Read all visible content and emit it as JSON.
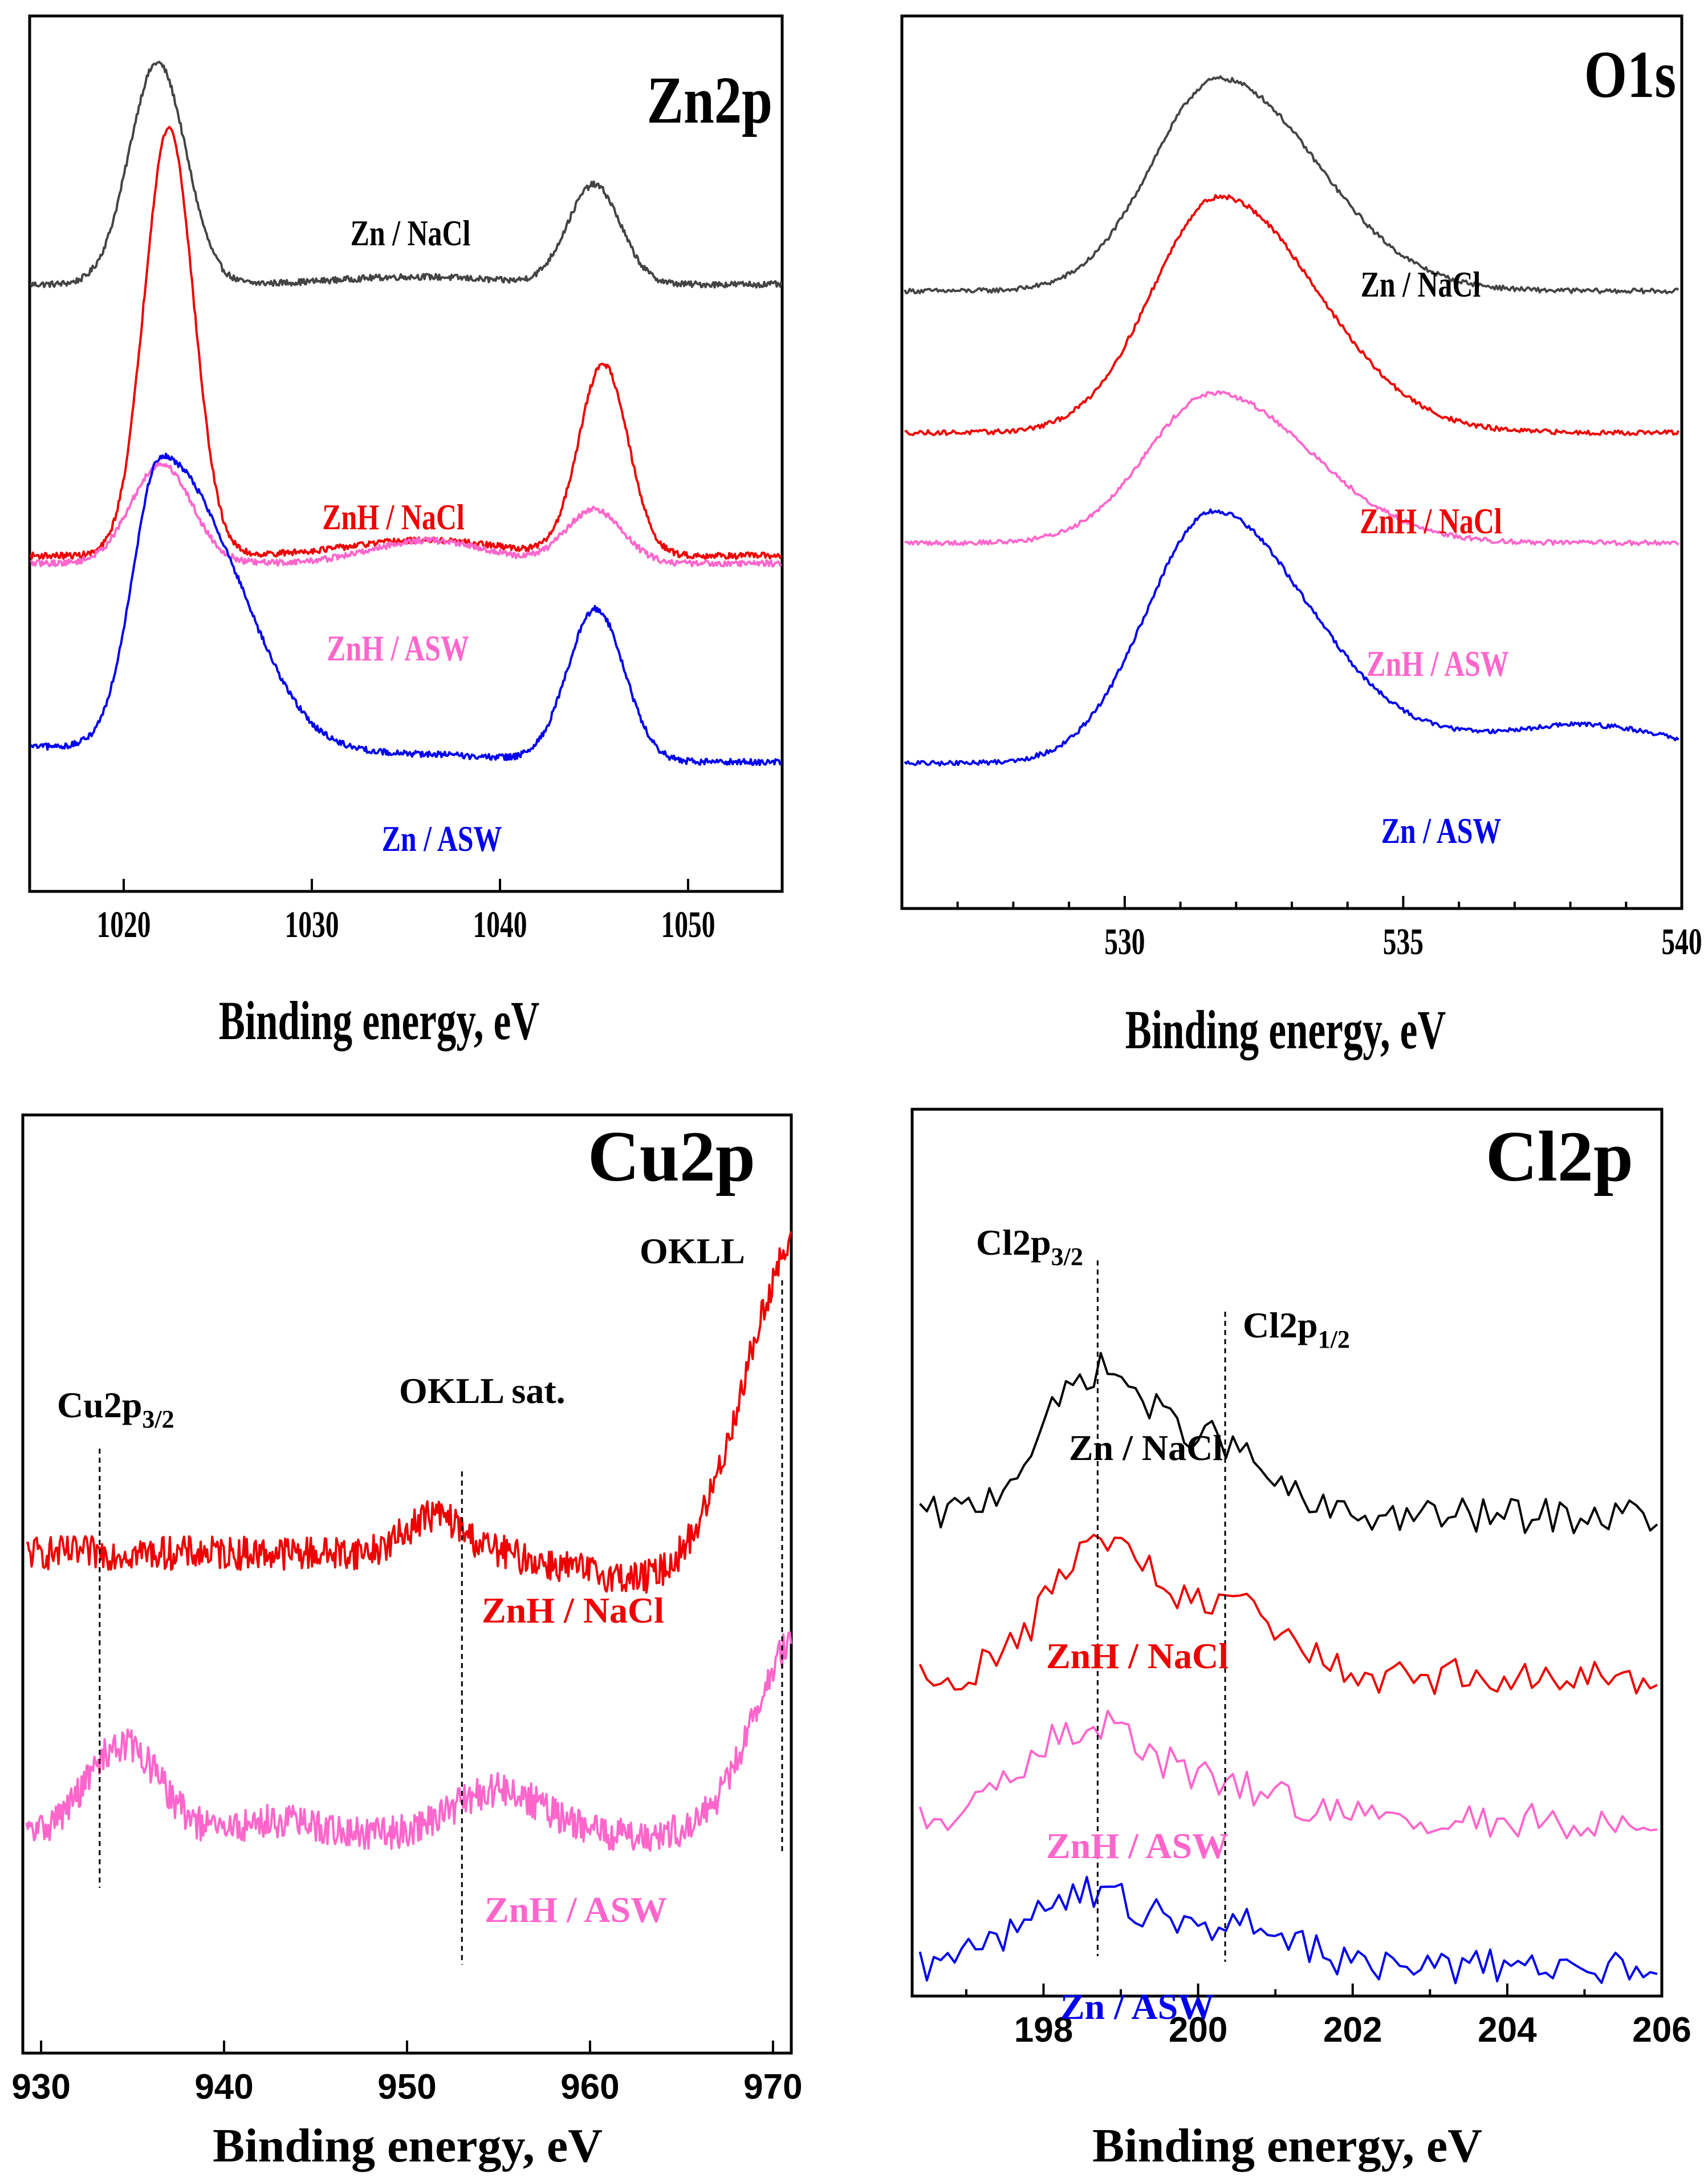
{
  "chart_data": [
    {
      "type": "line",
      "title": "Zn2p",
      "xlabel": "Binding energy, eV",
      "ylabel": "",
      "xlim": [
        1015,
        1055
      ],
      "xticks": [
        1020,
        1030,
        1040,
        1050
      ],
      "xtick_labels": [
        "1020",
        "1030",
        "1040",
        "1050"
      ],
      "y_units": "arbitrary (offset, relative intensity)",
      "series": [
        {
          "name": "Zn / NaCl",
          "color": "#444444",
          "baseline": 0.71,
          "peaks": [
            {
              "x": 1021.8,
              "height": 0.29,
              "width": 1.5
            },
            {
              "x": 1045.0,
              "height": 0.13,
              "width": 1.4
            },
            {
              "x": 1035.5,
              "height": 0.01,
              "width": 4
            }
          ]
        },
        {
          "name": "ZnH / NaCl",
          "color": "#ee0000",
          "baseline": 0.355,
          "peaks": [
            {
              "x": 1022.4,
              "height": 0.56,
              "width": 1.3
            },
            {
              "x": 1045.5,
              "height": 0.25,
              "width": 1.3
            },
            {
              "x": 1036.0,
              "height": 0.02,
              "width": 4
            }
          ]
        },
        {
          "name": "ZnH / ASW",
          "color": "#ff66cc",
          "baseline": 0.345,
          "peaks": [
            {
              "x": 1022.0,
              "height": 0.13,
              "width": 1.6
            },
            {
              "x": 1045.0,
              "height": 0.07,
              "width": 1.5
            },
            {
              "x": 1036.2,
              "height": 0.03,
              "width": 3
            }
          ]
        },
        {
          "name": "Zn / ASW",
          "color": "#0000ee",
          "baseline": 0.105,
          "peaks": [
            {
              "x": 1022.0,
              "height": 0.38,
              "width": 1.5
            },
            {
              "x": 1045.1,
              "height": 0.2,
              "width": 1.5
            },
            {
              "x": 1035.5,
              "height": 0.01,
              "width": 4
            }
          ]
        }
      ]
    },
    {
      "type": "line",
      "title": "O1s",
      "xlabel": "Binding energy, eV",
      "ylabel": "",
      "xlim": [
        526,
        540
      ],
      "xticks": [
        530,
        535,
        540
      ],
      "xtick_labels": [
        "530",
        "535",
        "540"
      ],
      "y_units": "arbitrary (offset, relative intensity)",
      "series": [
        {
          "name": "Zn / NaCl",
          "color": "#444444",
          "baseline": 0.71,
          "peaks": [
            {
              "x": 531.7,
              "height": 0.27,
              "width": 1.2
            }
          ]
        },
        {
          "name": "ZnH / NaCl",
          "color": "#ee0000",
          "baseline": 0.53,
          "peaks": [
            {
              "x": 531.7,
              "height": 0.3,
              "width": 1.2
            }
          ]
        },
        {
          "name": "ZnH / ASW",
          "color": "#ff66cc",
          "baseline": 0.39,
          "peaks": [
            {
              "x": 531.6,
              "height": 0.19,
              "width": 1.2
            }
          ]
        },
        {
          "name": "Zn / ASW",
          "color": "#0000ee",
          "baseline": 0.11,
          "peaks": [
            {
              "x": 531.6,
              "height": 0.32,
              "width": 1.2
            }
          ]
        }
      ]
    },
    {
      "type": "line",
      "title": "Cu2p",
      "xlabel": "Binding energy, eV",
      "ylabel": "",
      "xlim": [
        929,
        971
      ],
      "xticks": [
        930,
        940,
        950,
        960,
        970
      ],
      "xtick_labels": [
        "930",
        "940",
        "950",
        "960",
        "970"
      ],
      "y_units": "arbitrary (offset, relative intensity)",
      "annotations": [
        {
          "text": "Cu2p",
          "sub": "3/2",
          "x": 933.2
        },
        {
          "text": "OKLL sat.",
          "sub": "",
          "x": 953.0
        },
        {
          "text": "OKLL",
          "sub": "",
          "x": 970.5
        }
      ],
      "series": [
        {
          "name": "ZnH / NaCl",
          "color": "#ee0000",
          "baseline": 0.55,
          "peaks": [
            {
              "x": 951.5,
              "height": 0.05,
              "width": 1.5
            },
            {
              "x": 971.5,
              "height": 0.45,
              "width": 3.0
            }
          ]
        },
        {
          "name": "ZnH / ASW",
          "color": "#ff66cc",
          "baseline": 0.18,
          "peaks": [
            {
              "x": 934.5,
              "height": 0.12,
              "width": 2.0
            },
            {
              "x": 955.0,
              "height": 0.06,
              "width": 2.5
            },
            {
              "x": 943.0,
              "height": 0.02,
              "width": 2
            },
            {
              "x": 971.5,
              "height": 0.26,
              "width": 2.5
            }
          ]
        }
      ]
    },
    {
      "type": "line",
      "title": "Cl2p",
      "xlabel": "Binding energy, eV",
      "ylabel": "",
      "xlim": [
        196.3,
        206
      ],
      "xticks": [
        198,
        200,
        202,
        204,
        206
      ],
      "xtick_labels": [
        "198",
        "200",
        "202",
        "204",
        "206"
      ],
      "y_units": "arbitrary (offset, relative intensity)",
      "annotations": [
        {
          "text": "Cl2p",
          "sub": "3/2",
          "x": 198.7
        },
        {
          "text": "Cl2p",
          "sub": "1/2",
          "x": 200.35
        }
      ],
      "series": [
        {
          "name": "Zn / NaCl",
          "color": "#000000",
          "baseline": 0.59,
          "peaks": [
            {
              "x": 198.7,
              "height": 0.18,
              "width": 0.7
            },
            {
              "x": 200.3,
              "height": 0.08,
              "width": 0.6
            }
          ]
        },
        {
          "name": "ZnH / NaCl",
          "color": "#ee0000",
          "baseline": 0.39,
          "peaks": [
            {
              "x": 198.8,
              "height": 0.17,
              "width": 0.7
            },
            {
              "x": 200.6,
              "height": 0.08,
              "width": 0.6
            }
          ]
        },
        {
          "name": "ZnH / ASW",
          "color": "#ff66cc",
          "baseline": 0.21,
          "peaks": [
            {
              "x": 198.6,
              "height": 0.12,
              "width": 0.8
            },
            {
              "x": 200.5,
              "height": 0.04,
              "width": 0.7
            }
          ]
        },
        {
          "name": "Zn / ASW",
          "color": "#0000ee",
          "baseline": 0.03,
          "peaks": [
            {
              "x": 198.6,
              "height": 0.09,
              "width": 0.8
            },
            {
              "x": 200.6,
              "height": 0.05,
              "width": 0.7
            }
          ]
        }
      ]
    }
  ]
}
